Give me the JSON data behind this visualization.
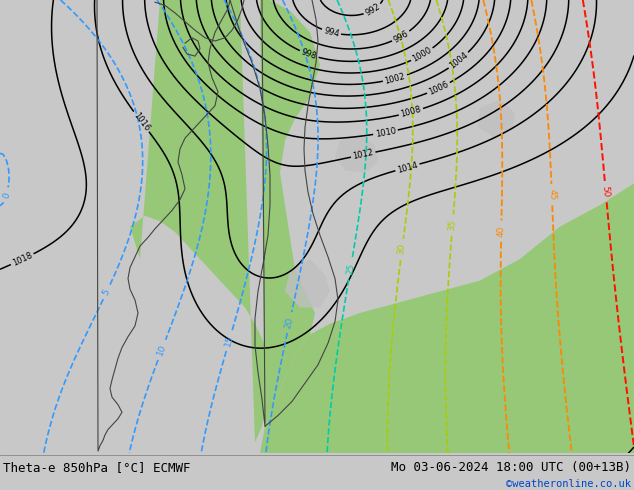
{
  "title_left": "Theta-e 850hPa [°C] ECMWF",
  "title_right": "Mo 03-06-2024 18:00 UTC (00+13B)",
  "copyright": "©weatheronline.co.uk",
  "bg_color": "#c8c8c8",
  "green_color": "#96c878",
  "isobar_color": "#000000",
  "theta_blue_color": "#3399ff",
  "theta_cyan_color": "#00ccaa",
  "theta_yellow_color": "#aacc00",
  "theta_orange_color": "#ff8800",
  "theta_red_color": "#ff1100",
  "bottom_bar_color": "#d8d8d8",
  "title_fontsize": 9,
  "copyright_color": "#0044cc",
  "fig_width": 6.34,
  "fig_height": 4.9,
  "dpi": 100
}
